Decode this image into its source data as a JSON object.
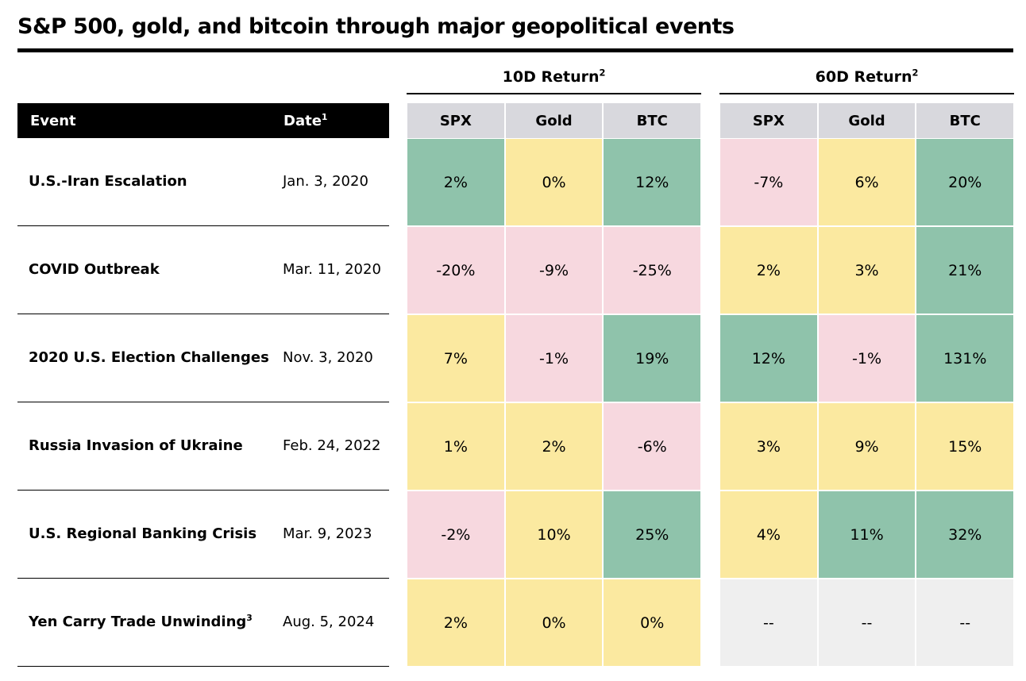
{
  "title": "S&P 500, gold, and bitcoin through major geopolitical events",
  "table": {
    "header": {
      "event": "Event",
      "date": {
        "label": "Date",
        "note": "1"
      }
    },
    "groups": [
      {
        "label": "10D Return",
        "note": "2",
        "columns": [
          "SPX",
          "Gold",
          "BTC"
        ]
      },
      {
        "label": "60D Return",
        "note": "2",
        "columns": [
          "SPX",
          "Gold",
          "BTC"
        ]
      }
    ],
    "rows": [
      {
        "event": "U.S.-Iran Escalation",
        "date": "Jan. 3, 2020",
        "cells": [
          "2%",
          "0%",
          "12%",
          "-7%",
          "6%",
          "20%"
        ],
        "colors": [
          "#8fc3ab",
          "#fbe9a0",
          "#8fc3ab",
          "#f7d8df",
          "#fbe9a0",
          "#8fc3ab"
        ]
      },
      {
        "event": "COVID Outbreak",
        "date": "Mar. 11, 2020",
        "cells": [
          "-20%",
          "-9%",
          "-25%",
          "2%",
          "3%",
          "21%"
        ],
        "colors": [
          "#f7d8df",
          "#f7d8df",
          "#f7d8df",
          "#fbe9a0",
          "#fbe9a0",
          "#8fc3ab"
        ]
      },
      {
        "event": "2020 U.S. Election Challenges",
        "date": "Nov. 3, 2020",
        "cells": [
          "7%",
          "-1%",
          "19%",
          "12%",
          "-1%",
          "131%"
        ],
        "colors": [
          "#fbe9a0",
          "#f7d8df",
          "#8fc3ab",
          "#8fc3ab",
          "#f7d8df",
          "#8fc3ab"
        ]
      },
      {
        "event": "Russia Invasion of Ukraine",
        "date": "Feb. 24, 2022",
        "cells": [
          "1%",
          "2%",
          "-6%",
          "3%",
          "9%",
          "15%"
        ],
        "colors": [
          "#fbe9a0",
          "#fbe9a0",
          "#f7d8df",
          "#fbe9a0",
          "#fbe9a0",
          "#fbe9a0"
        ]
      },
      {
        "event": "U.S. Regional Banking Crisis",
        "date": "Mar. 9, 2023",
        "cells": [
          "-2%",
          "10%",
          "25%",
          "4%",
          "11%",
          "32%"
        ],
        "colors": [
          "#f7d8df",
          "#fbe9a0",
          "#8fc3ab",
          "#fbe9a0",
          "#8fc3ab",
          "#8fc3ab"
        ]
      },
      {
        "event": "Yen Carry Trade Unwinding",
        "note": "3",
        "date": "Aug. 5, 2024",
        "cells": [
          "2%",
          "0%",
          "0%",
          "--",
          "--",
          "--"
        ],
        "colors": [
          "#fbe9a0",
          "#fbe9a0",
          "#fbe9a0",
          "#efefef",
          "#efefef",
          "#efefef"
        ]
      }
    ]
  }
}
